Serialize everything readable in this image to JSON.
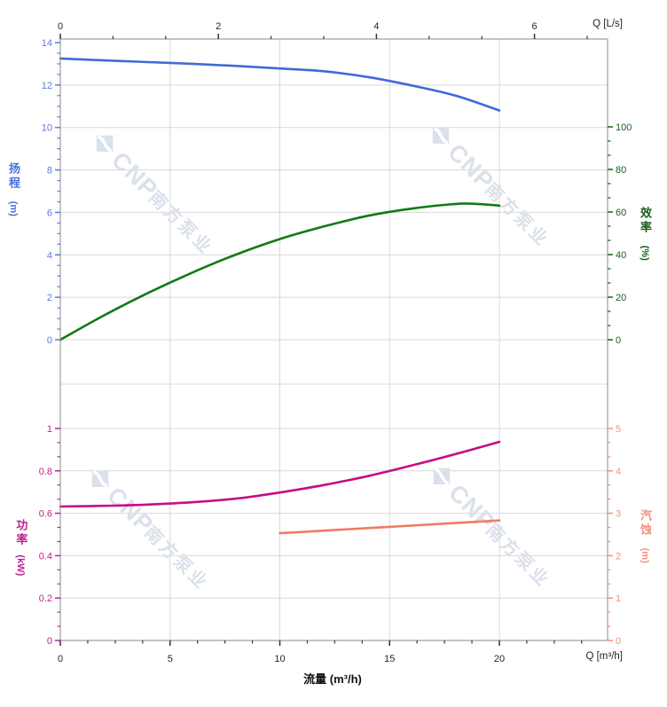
{
  "watermark": {
    "brand": "CNP",
    "company": "南方泵业"
  },
  "colors": {
    "watermark": "#dbe1ea",
    "grid": "#d8d8d8",
    "border": "#9c9c9c",
    "black_tick": "#333333",
    "black_label": "#262626"
  },
  "chart_data": {
    "type": "line",
    "title": "",
    "x_bottom": {
      "title": "流量 (m³/h)",
      "corner_label": "Q [m³/h]",
      "ticks": [
        0,
        5,
        10,
        15,
        20
      ],
      "range": [
        0,
        24.9
      ]
    },
    "x_top": {
      "corner_label": "Q [L/s]",
      "ticks": [
        0,
        2,
        4,
        6
      ],
      "m3h_per_Ls": 3.6
    },
    "y_axes": {
      "head": {
        "title": "扬程",
        "unit": "(m)",
        "side": "left",
        "panel": "top",
        "ticks": [
          0,
          2,
          4,
          6,
          8,
          10,
          12,
          14
        ],
        "range": [
          0,
          14
        ],
        "curve_color": "#4169d8",
        "label_color": "#5b79e0"
      },
      "eff": {
        "title": "效率",
        "unit": "(%)",
        "side": "right",
        "panel": "top",
        "ticks": [
          0,
          20,
          40,
          60,
          80,
          100
        ],
        "range": [
          0,
          100
        ],
        "curve_color": "#117a14",
        "label_color": "#17601f"
      },
      "power": {
        "title": "功率",
        "unit": "(kW)",
        "side": "left",
        "panel": "bottom",
        "ticks": [
          0,
          0.2,
          0.4,
          0.6,
          0.8,
          1
        ],
        "range": [
          0,
          1
        ],
        "curve_color": "#c60d86",
        "label_color": "#c0218f"
      },
      "npsh": {
        "title": "汽蚀",
        "unit": "(m)",
        "side": "right",
        "panel": "bottom",
        "ticks": [
          0,
          1,
          2,
          3,
          4,
          5
        ],
        "range": [
          0,
          5
        ],
        "curve_color": "#f27a64",
        "label_color": "#f5907f"
      }
    },
    "series": [
      {
        "axis": "head",
        "name": "扬程",
        "points": [
          [
            0,
            13.25
          ],
          [
            2,
            13.16
          ],
          [
            4,
            13.08
          ],
          [
            6,
            13.0
          ],
          [
            8,
            12.9
          ],
          [
            10,
            12.78
          ],
          [
            12,
            12.65
          ],
          [
            14,
            12.38
          ],
          [
            16,
            11.98
          ],
          [
            18,
            11.5
          ],
          [
            20,
            10.8
          ]
        ]
      },
      {
        "axis": "eff",
        "name": "效率",
        "points": [
          [
            0,
            0
          ],
          [
            2,
            11.5
          ],
          [
            4,
            22
          ],
          [
            6,
            31.5
          ],
          [
            8,
            40
          ],
          [
            10,
            47.3
          ],
          [
            12,
            53.2
          ],
          [
            14,
            58.2
          ],
          [
            16,
            61.6
          ],
          [
            18,
            63.8
          ],
          [
            19,
            63.8
          ],
          [
            20,
            63.0
          ]
        ]
      },
      {
        "axis": "power",
        "name": "功率",
        "points": [
          [
            0,
            0.632
          ],
          [
            2,
            0.635
          ],
          [
            4,
            0.641
          ],
          [
            6,
            0.652
          ],
          [
            8,
            0.669
          ],
          [
            10,
            0.698
          ],
          [
            12,
            0.733
          ],
          [
            14,
            0.775
          ],
          [
            16,
            0.825
          ],
          [
            18,
            0.879
          ],
          [
            20,
            0.937
          ]
        ]
      },
      {
        "axis": "npsh",
        "name": "汽蚀",
        "points": [
          [
            10,
            2.53
          ],
          [
            12,
            2.59
          ],
          [
            14,
            2.65
          ],
          [
            16,
            2.71
          ],
          [
            18,
            2.77
          ],
          [
            20,
            2.83
          ]
        ]
      }
    ]
  }
}
